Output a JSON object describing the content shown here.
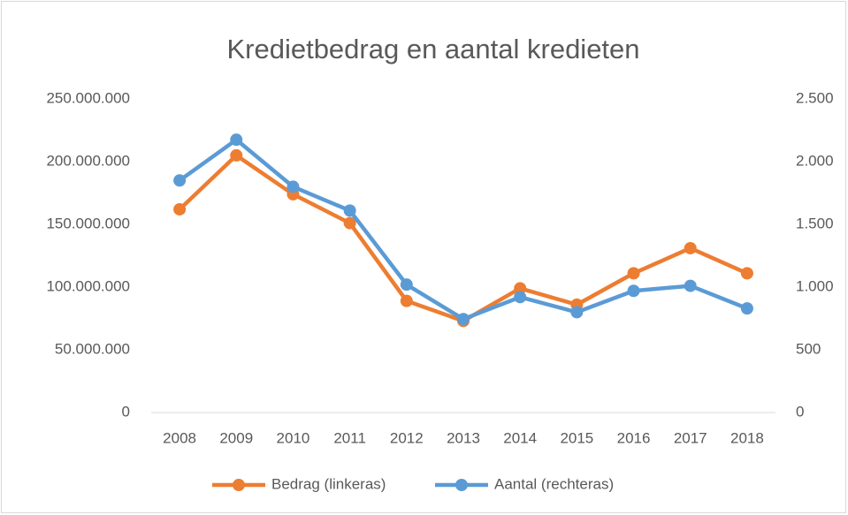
{
  "chart_data": {
    "type": "line",
    "title": "Kredietbedrag en aantal kredieten",
    "categories": [
      "2008",
      "2009",
      "2010",
      "2011",
      "2012",
      "2013",
      "2014",
      "2015",
      "2016",
      "2017",
      "2018"
    ],
    "series": [
      {
        "name": "Bedrag (linkeras)",
        "color": "#ed7d31",
        "axis": "y",
        "values": [
          162000000,
          205000000,
          174000000,
          151000000,
          89000000,
          73000000,
          99000000,
          86000000,
          111000000,
          131000000,
          111000000
        ]
      },
      {
        "name": "Aantal (rechteras)",
        "color": "#5b9bd5",
        "axis": "y2",
        "values": [
          1850,
          2175,
          1800,
          1610,
          1020,
          745,
          920,
          800,
          970,
          1010,
          830
        ]
      }
    ],
    "ylim": [
      0,
      250000000
    ],
    "yticks": [
      0,
      {
        "value": 50000000,
        "label": "50.000.000"
      },
      {
        "value": 100000000,
        "label": "100.000.000"
      },
      {
        "value": 150000000,
        "label": "150.000.000"
      },
      {
        "value": 200000000,
        "label": "200.000.000"
      },
      {
        "value": 250000000,
        "label": "250.000.000"
      }
    ],
    "y2lim": [
      0,
      2500
    ],
    "y2ticks": [
      0,
      500,
      {
        "value": 1000,
        "label": "1.000"
      },
      {
        "value": 1500,
        "label": "1.500"
      },
      {
        "value": 2000,
        "label": "2.000"
      },
      {
        "value": 2500,
        "label": "2.500"
      }
    ],
    "grid": false,
    "legend": "bottom"
  }
}
